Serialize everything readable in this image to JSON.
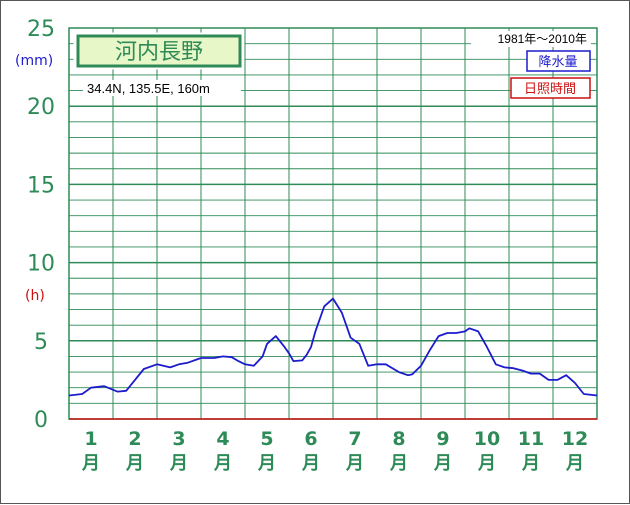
{
  "chart_data": {
    "type": "line",
    "station": "河内長野",
    "location": "34.4N,  135.5E,  160m",
    "period": "1981年〜2010年",
    "unit_precip": "(mm)",
    "unit_sun": "(h)",
    "legend": [
      {
        "label": "降水量",
        "color": "#1c1ccc"
      },
      {
        "label": "日照時間",
        "color": "#cc1111"
      }
    ],
    "y_ticks": [
      "0",
      "5",
      "10",
      "15",
      "20",
      "25"
    ],
    "ylim": [
      0,
      25
    ],
    "grid": true,
    "months": [
      {
        "num": "1",
        "suffix": "月"
      },
      {
        "num": "2",
        "suffix": "月"
      },
      {
        "num": "3",
        "suffix": "月"
      },
      {
        "num": "4",
        "suffix": "月"
      },
      {
        "num": "5",
        "suffix": "月"
      },
      {
        "num": "6",
        "suffix": "月"
      },
      {
        "num": "7",
        "suffix": "月"
      },
      {
        "num": "8",
        "suffix": "月"
      },
      {
        "num": "9",
        "suffix": "月"
      },
      {
        "num": "10",
        "suffix": "月"
      },
      {
        "num": "11",
        "suffix": "月"
      },
      {
        "num": "12",
        "suffix": "月"
      }
    ],
    "xlim": [
      0.5,
      12.5
    ],
    "series": [
      {
        "name": "降水量",
        "color": "#1c1ccc",
        "x": [
          0.5,
          0.8,
          1.0,
          1.3,
          1.6,
          1.8,
          2.0,
          2.2,
          2.5,
          2.8,
          3.0,
          3.2,
          3.5,
          3.8,
          4.0,
          4.2,
          4.35,
          4.5,
          4.7,
          4.9,
          5.0,
          5.2,
          5.4,
          5.5,
          5.6,
          5.8,
          5.9,
          6.0,
          6.1,
          6.3,
          6.5,
          6.7,
          6.9,
          7.0,
          7.1,
          7.3,
          7.5,
          7.7,
          8.0,
          8.2,
          8.3,
          8.5,
          8.7,
          8.9,
          9.1,
          9.3,
          9.5,
          9.6,
          9.8,
          10.0,
          10.2,
          10.4,
          10.6,
          10.8,
          11.0,
          11.2,
          11.4,
          11.6,
          11.8,
          12.0,
          12.2,
          12.5
        ],
        "y": [
          1.5,
          1.6,
          2.0,
          2.1,
          1.75,
          1.8,
          2.5,
          3.2,
          3.5,
          3.3,
          3.5,
          3.6,
          3.9,
          3.9,
          4.0,
          3.95,
          3.7,
          3.5,
          3.4,
          4.0,
          4.8,
          5.3,
          4.6,
          4.2,
          3.7,
          3.75,
          4.1,
          4.6,
          5.6,
          7.2,
          7.7,
          6.8,
          5.2,
          5.0,
          4.8,
          3.4,
          3.5,
          3.5,
          3.0,
          2.8,
          2.85,
          3.4,
          4.4,
          5.3,
          5.5,
          5.5,
          5.6,
          5.8,
          5.6,
          4.6,
          3.5,
          3.3,
          3.25,
          3.1,
          2.9,
          2.9,
          2.5,
          2.5,
          2.8,
          2.3,
          1.6,
          1.5
        ]
      }
    ]
  }
}
